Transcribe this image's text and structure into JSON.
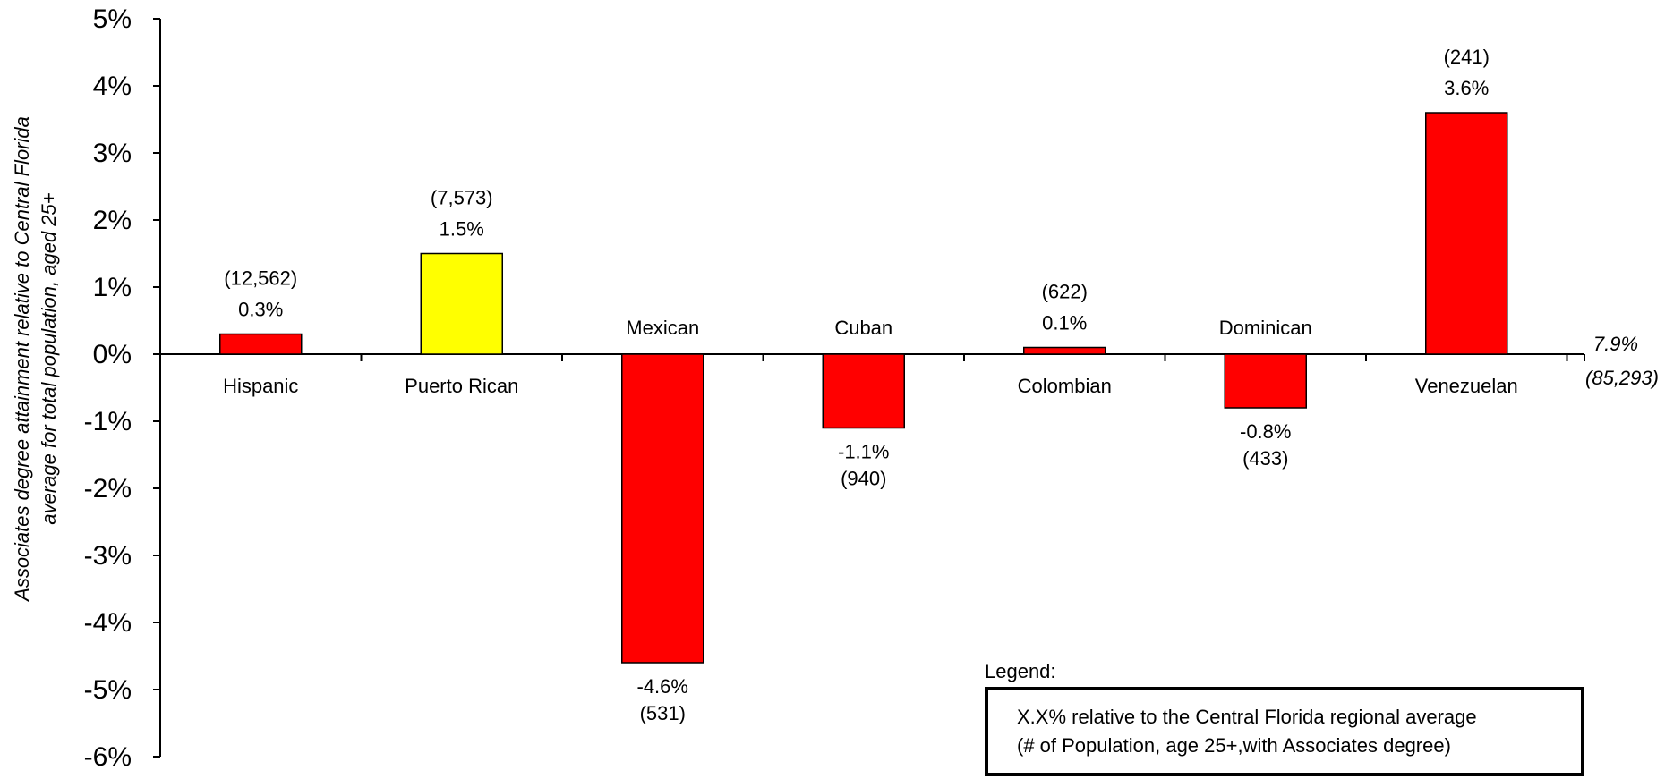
{
  "chart_data": {
    "type": "bar",
    "categories": [
      "Hispanic",
      "Puerto Rican",
      "Mexican",
      "Cuban",
      "Colombian",
      "Dominican",
      "Venezuelan"
    ],
    "values": [
      0.3,
      1.5,
      -4.6,
      -1.1,
      0.1,
      -0.8,
      3.6
    ],
    "value_labels": [
      "0.3%",
      "1.5%",
      "-4.6%",
      "-1.1%",
      "0.1%",
      "-0.8%",
      "3.6%"
    ],
    "counts": [
      "(12,562)",
      "(7,573)",
      "(531)",
      "(940)",
      "(622)",
      "(433)",
      "(241)"
    ],
    "colors": [
      "#ff0000",
      "#ffff00",
      "#ff0000",
      "#ff0000",
      "#ff0000",
      "#ff0000",
      "#ff0000"
    ],
    "ylabel_lines": [
      "Associates degree attainment relative to Central Florida",
      "average for total population, aged 25+"
    ],
    "ylim": [
      -6,
      5
    ],
    "yticks": [
      5,
      4,
      3,
      2,
      1,
      0,
      -1,
      -2,
      -3,
      -4,
      -5,
      -6
    ],
    "ytick_labels": [
      "5%",
      "4%",
      "3%",
      "2%",
      "1%",
      "0%",
      "-1%",
      "-2%",
      "-3%",
      "-4%",
      "-5%",
      "-6%"
    ],
    "reference": {
      "value_label": "7.9%",
      "count_label": "(85,293)"
    },
    "legend_title": "Legend:",
    "legend_lines": [
      "X.X% relative to the Central Florida regional average",
      "(# of Population, age 25+,with Associates degree)"
    ],
    "grid": false
  }
}
